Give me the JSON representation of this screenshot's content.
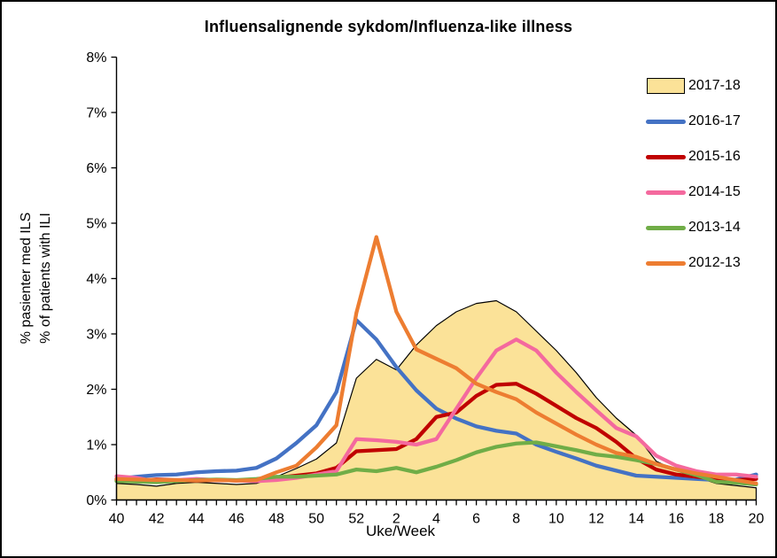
{
  "title": "Influensalignende sykdom/Influenza-like illness",
  "y_axis": {
    "title_line1": "% pasienter med ILS",
    "title_line2": "% of patients with ILI",
    "tick_labels": [
      "0%",
      "1%",
      "2%",
      "3%",
      "4%",
      "5%",
      "6%",
      "7%",
      "8%"
    ]
  },
  "x_axis": {
    "title": "Uke/Week",
    "tick_labels": [
      "40",
      "42",
      "44",
      "46",
      "48",
      "50",
      "52",
      "2",
      "4",
      "6",
      "8",
      "10",
      "12",
      "14",
      "16",
      "18",
      "20"
    ]
  },
  "colors": {
    "area_fill": "#FBE298",
    "area_outline": "#000000",
    "axis": "#000000",
    "blue": "#4472C4",
    "dark_red": "#C00000",
    "pink": "#F4699E",
    "green": "#70AD47",
    "orange": "#ED7D31"
  },
  "chart_data": {
    "type": "area",
    "title": "Influensalignende sykdom/Influenza-like illness",
    "xlabel": "Uke/Week",
    "ylabel": "% pasienter med ILS / % of patients with ILI",
    "ylim": [
      0,
      8
    ],
    "y_tick_step": 1,
    "y_tick_suffix": "%",
    "grid": false,
    "legend_position": "top-right",
    "x_label_every_n_weeks": 2,
    "categories": [
      "40",
      "41",
      "42",
      "43",
      "44",
      "45",
      "46",
      "47",
      "48",
      "49",
      "50",
      "51",
      "52",
      "1",
      "2",
      "3",
      "4",
      "5",
      "6",
      "7",
      "8",
      "9",
      "10",
      "11",
      "12",
      "13",
      "14",
      "15",
      "16",
      "17",
      "18",
      "19",
      "20"
    ],
    "series": [
      {
        "name": "2017-18",
        "type": "area",
        "color": "#FBE298",
        "outline": "#000000",
        "values": [
          0.3,
          0.28,
          0.25,
          0.3,
          0.32,
          0.3,
          0.28,
          0.3,
          0.42,
          0.57,
          0.74,
          1.03,
          2.2,
          2.54,
          2.35,
          2.8,
          3.15,
          3.4,
          3.55,
          3.6,
          3.4,
          3.05,
          2.7,
          2.3,
          1.85,
          1.48,
          1.17,
          0.7,
          0.53,
          0.42,
          0.3,
          0.26,
          0.22
        ]
      },
      {
        "name": "2016-17",
        "type": "line",
        "color": "#4472C4",
        "values": [
          0.38,
          0.42,
          0.45,
          0.46,
          0.5,
          0.52,
          0.53,
          0.58,
          0.75,
          1.03,
          1.35,
          1.95,
          3.25,
          2.9,
          2.4,
          1.98,
          1.65,
          1.47,
          1.33,
          1.25,
          1.2,
          1.0,
          0.87,
          0.75,
          0.62,
          0.53,
          0.44,
          0.42,
          0.4,
          0.38,
          0.36,
          0.37,
          0.46
        ]
      },
      {
        "name": "2015-16",
        "type": "line",
        "color": "#C00000",
        "values": [
          0.36,
          0.35,
          0.37,
          0.36,
          0.35,
          0.36,
          0.35,
          0.37,
          0.4,
          0.44,
          0.48,
          0.58,
          0.88,
          0.9,
          0.92,
          1.1,
          1.5,
          1.58,
          1.88,
          2.08,
          2.1,
          1.92,
          1.7,
          1.48,
          1.3,
          1.05,
          0.75,
          0.55,
          0.46,
          0.42,
          0.38,
          0.36,
          0.38
        ]
      },
      {
        "name": "2014-15",
        "type": "line",
        "color": "#F4699E",
        "values": [
          0.43,
          0.4,
          0.33,
          0.36,
          0.38,
          0.36,
          0.35,
          0.34,
          0.36,
          0.4,
          0.46,
          0.52,
          1.1,
          1.08,
          1.05,
          1.0,
          1.1,
          1.65,
          2.2,
          2.7,
          2.9,
          2.7,
          2.3,
          1.95,
          1.62,
          1.3,
          1.15,
          0.8,
          0.62,
          0.52,
          0.46,
          0.46,
          0.42
        ]
      },
      {
        "name": "2013-14",
        "type": "line",
        "color": "#70AD47",
        "values": [
          0.34,
          0.33,
          0.32,
          0.34,
          0.36,
          0.37,
          0.36,
          0.38,
          0.42,
          0.42,
          0.44,
          0.46,
          0.55,
          0.52,
          0.58,
          0.5,
          0.6,
          0.72,
          0.86,
          0.96,
          1.02,
          1.04,
          0.97,
          0.9,
          0.82,
          0.78,
          0.72,
          0.65,
          0.55,
          0.45,
          0.33,
          0.31,
          0.28
        ]
      },
      {
        "name": "2012-13",
        "type": "line",
        "color": "#ED7D31",
        "values": [
          0.38,
          0.37,
          0.36,
          0.36,
          0.35,
          0.36,
          0.35,
          0.36,
          0.5,
          0.62,
          0.95,
          1.35,
          3.38,
          4.75,
          3.4,
          2.72,
          2.55,
          2.38,
          2.1,
          1.95,
          1.82,
          1.58,
          1.38,
          1.18,
          1.0,
          0.85,
          0.78,
          0.65,
          0.55,
          0.48,
          0.42,
          0.36,
          0.3
        ]
      }
    ]
  }
}
